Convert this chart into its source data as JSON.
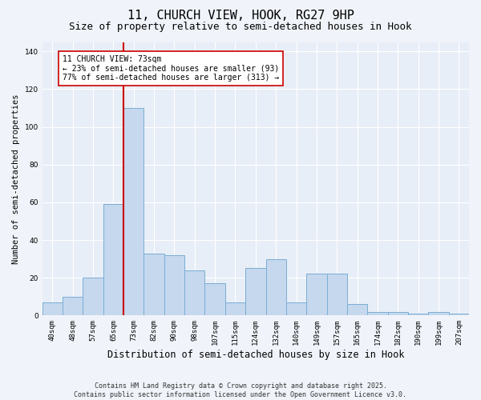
{
  "title": "11, CHURCH VIEW, HOOK, RG27 9HP",
  "subtitle": "Size of property relative to semi-detached houses in Hook",
  "xlabel": "Distribution of semi-detached houses by size in Hook",
  "ylabel": "Number of semi-detached properties",
  "categories": [
    "40sqm",
    "48sqm",
    "57sqm",
    "65sqm",
    "73sqm",
    "82sqm",
    "90sqm",
    "98sqm",
    "107sqm",
    "115sqm",
    "124sqm",
    "132sqm",
    "140sqm",
    "149sqm",
    "157sqm",
    "165sqm",
    "174sqm",
    "182sqm",
    "190sqm",
    "199sqm",
    "207sqm"
  ],
  "values": [
    7,
    10,
    20,
    59,
    110,
    33,
    32,
    24,
    17,
    7,
    25,
    30,
    7,
    22,
    22,
    6,
    2,
    2,
    1,
    2,
    1
  ],
  "bar_color": "#c5d8ee",
  "bar_edge_color": "#7aadd4",
  "highlight_line_index": 4,
  "highlight_line_color": "#cc0000",
  "annotation_line1": "11 CHURCH VIEW: 73sqm",
  "annotation_line2": "← 23% of semi-detached houses are smaller (93)",
  "annotation_line3": "77% of semi-detached houses are larger (313) →",
  "annotation_box_facecolor": "#ffffff",
  "annotation_box_edgecolor": "#cc0000",
  "ylim": [
    0,
    145
  ],
  "yticks": [
    0,
    20,
    40,
    60,
    80,
    100,
    120,
    140
  ],
  "plot_bg_color": "#e8eef7",
  "fig_bg_color": "#f0f4fa",
  "footer_line1": "Contains HM Land Registry data © Crown copyright and database right 2025.",
  "footer_line2": "Contains public sector information licensed under the Open Government Licence v3.0.",
  "title_fontsize": 11,
  "subtitle_fontsize": 9,
  "xlabel_fontsize": 8.5,
  "ylabel_fontsize": 7.5,
  "tick_fontsize": 6.5,
  "annotation_fontsize": 7,
  "footer_fontsize": 6
}
